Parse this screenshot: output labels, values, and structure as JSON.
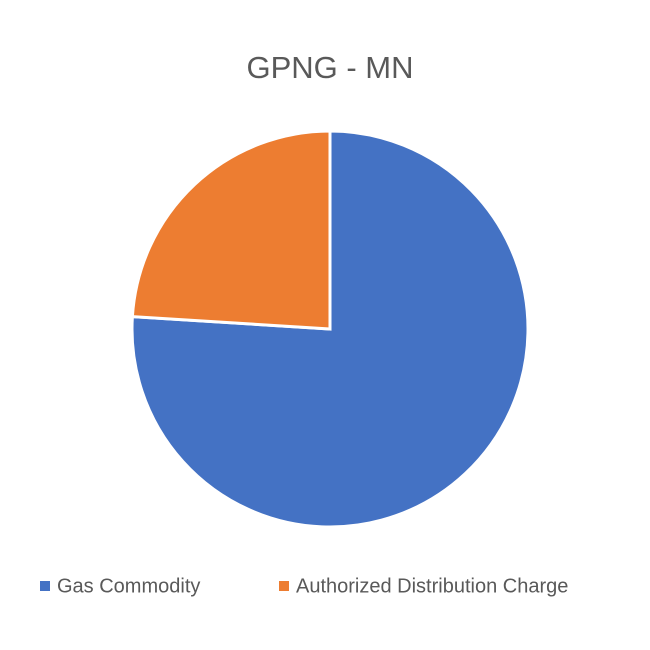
{
  "chart_data": {
    "type": "pie",
    "title": "GPNG - MN",
    "categories": [
      "Gas Commodity",
      "Authorized Distribution Charge"
    ],
    "values": [
      76,
      24
    ],
    "colors": [
      "#4472c4",
      "#ed7d31"
    ],
    "legend": "bottom"
  }
}
